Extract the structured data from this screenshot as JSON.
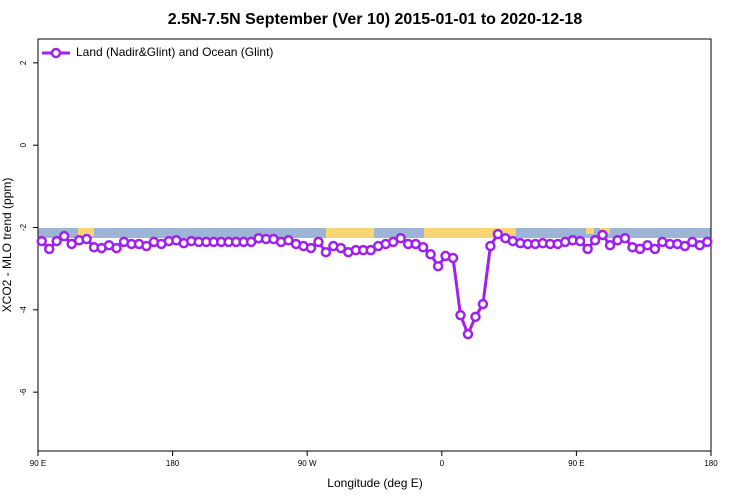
{
  "chart_data": {
    "type": "line",
    "title": "2.5N-7.5N September (Ver 10)   2015-01-01 to 2020-12-18",
    "x_label": "Longitude (deg E)",
    "y_label": "XCO2 - MLO trend (ppm)",
    "x": [
      92.5,
      97.5,
      102.5,
      107.5,
      112.5,
      117.5,
      122.5,
      127.5,
      132.5,
      137.5,
      142.5,
      147.5,
      152.5,
      157.5,
      162.5,
      167.5,
      172.5,
      177.5,
      182.5,
      187.5,
      192.5,
      197.5,
      202.5,
      207.5,
      212.5,
      217.5,
      222.5,
      227.5,
      232.5,
      237.5,
      242.5,
      247.5,
      252.5,
      257.5,
      262.5,
      267.5,
      272.5,
      277.5,
      282.5,
      287.5,
      292.5,
      297.5,
      302.5,
      307.5,
      312.5,
      317.5,
      322.5,
      327.5,
      332.5,
      337.5,
      342.5,
      347.5,
      352.5,
      357.5,
      362.5,
      367.5,
      372.5,
      377.5,
      382.5,
      387.5,
      392.5,
      397.5,
      402.5,
      407.5,
      412.5,
      417.5,
      422.5,
      427.5,
      432.5,
      437.5,
      442.5,
      447.5,
      452.5,
      457.5,
      462.5,
      467.5,
      472.5,
      477.5,
      482.5,
      487.5,
      492.5,
      497.5,
      502.5,
      507.5,
      512.5,
      517.5,
      522.5,
      527.5,
      532.5,
      537.5
    ],
    "series": [
      {
        "name": "Land (Nadir&Glint) and Ocean (Glint)",
        "color": "#a020f0",
        "values": [
          -2.33,
          -2.52,
          -2.33,
          -2.21,
          -2.4,
          -2.31,
          -2.28,
          -2.48,
          -2.5,
          -2.43,
          -2.5,
          -2.35,
          -2.4,
          -2.4,
          -2.45,
          -2.35,
          -2.4,
          -2.33,
          -2.31,
          -2.38,
          -2.33,
          -2.35,
          -2.35,
          -2.35,
          -2.35,
          -2.35,
          -2.35,
          -2.35,
          -2.35,
          -2.26,
          -2.28,
          -2.28,
          -2.35,
          -2.31,
          -2.4,
          -2.45,
          -2.5,
          -2.35,
          -2.6,
          -2.45,
          -2.5,
          -2.6,
          -2.55,
          -2.55,
          -2.55,
          -2.45,
          -2.4,
          -2.35,
          -2.26,
          -2.4,
          -2.4,
          -2.48,
          -2.65,
          -2.94,
          -2.69,
          -2.74,
          -4.13,
          -4.59,
          -4.17,
          -3.86,
          -2.45,
          -2.16,
          -2.26,
          -2.33,
          -2.38,
          -2.4,
          -2.4,
          -2.38,
          -2.4,
          -2.4,
          -2.35,
          -2.31,
          -2.33,
          -2.52,
          -2.31,
          -2.18,
          -2.43,
          -2.31,
          -2.26,
          -2.48,
          -2.52,
          -2.43,
          -2.52,
          -2.35,
          -2.4,
          -2.4,
          -2.45,
          -2.35,
          -2.43,
          -2.35
        ]
      }
    ],
    "xlim": [
      90,
      540
    ],
    "xticks": [
      {
        "value": 90,
        "label": "90 E"
      },
      180,
      {
        "value": 270,
        "label": "90 W"
      },
      {
        "value": 360,
        "label": "0"
      },
      {
        "value": 450,
        "label": "90 E"
      },
      {
        "value": 540,
        "label": "180"
      }
    ],
    "ylim": [
      -7.43,
      2.58
    ],
    "yticks": [
      2,
      0,
      -2,
      -4,
      -6
    ],
    "legend": "top-left"
  }
}
